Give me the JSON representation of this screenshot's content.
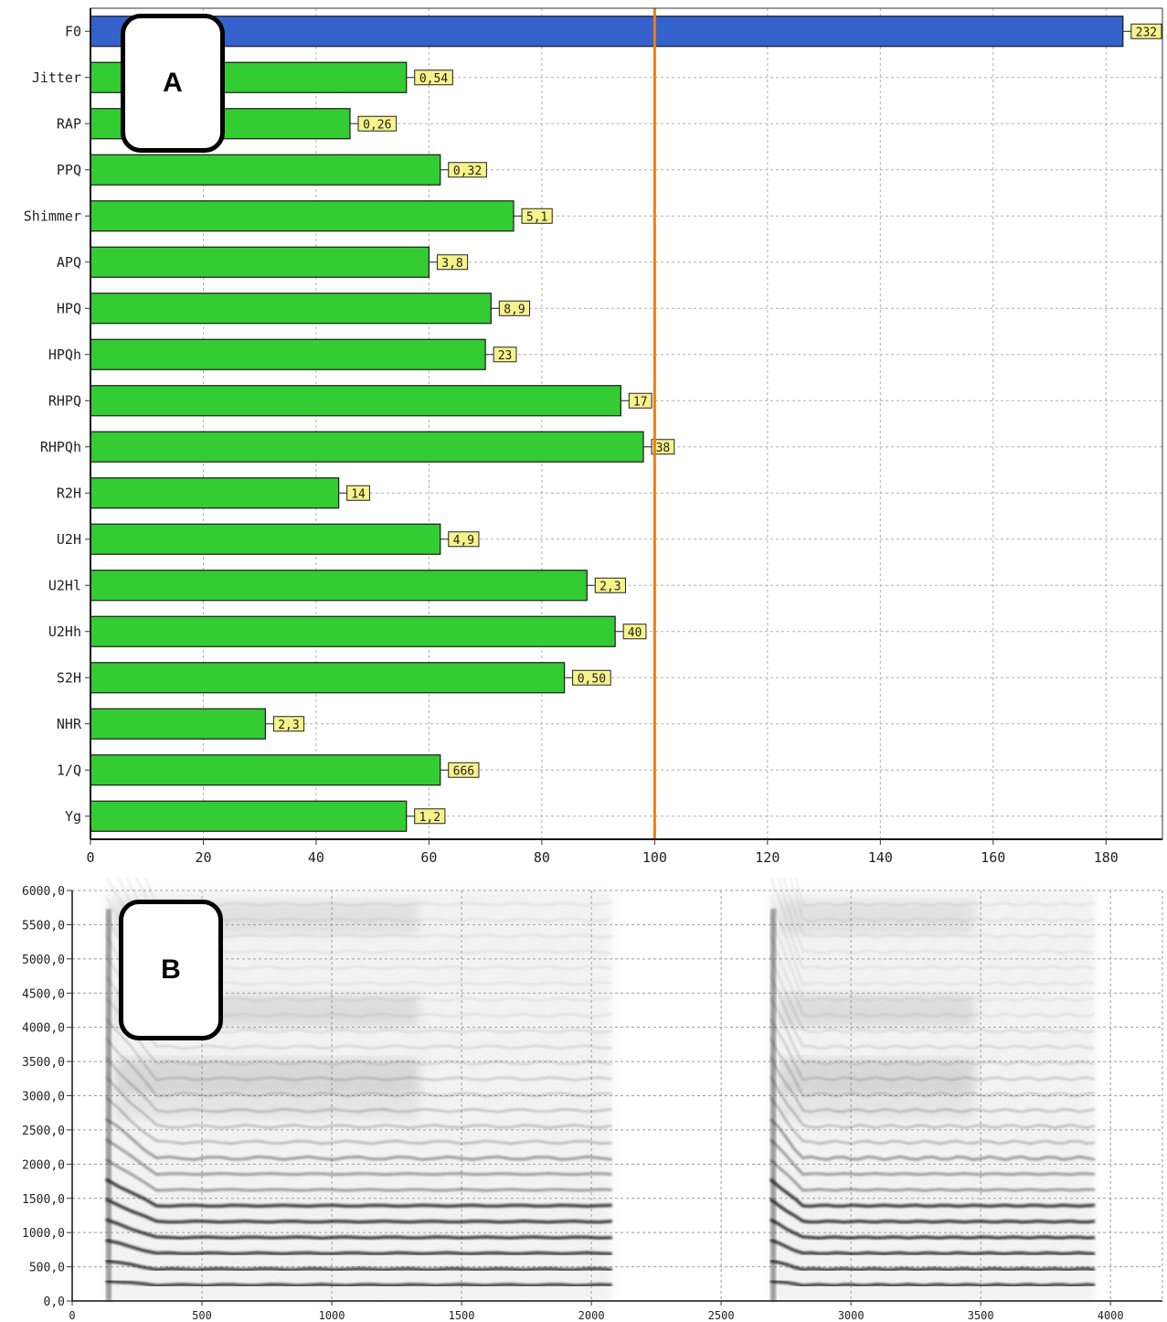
{
  "panels": {
    "a_label": "A",
    "b_label": "B"
  },
  "chart_data": [
    {
      "type": "bar",
      "orientation": "horizontal",
      "categories": [
        "F0",
        "Jitter",
        "RAP",
        "PPQ",
        "Shimmer",
        "APQ",
        "HPQ",
        "HPQh",
        "RHPQ",
        "RHPQh",
        "R2H",
        "U2H",
        "U2Hl",
        "U2Hh",
        "S2H",
        "NHR",
        "1/Q",
        "Yg"
      ],
      "values": [
        183,
        56,
        46,
        62,
        75,
        60,
        71,
        70,
        94,
        98,
        44,
        62,
        88,
        93,
        84,
        31,
        62,
        56
      ],
      "data_labels": [
        "232",
        "0,54",
        "0,26",
        "0,32",
        "5,1",
        "3,8",
        "8,9",
        "23",
        "17",
        "38",
        "14",
        "4,9",
        "2,3",
        "40",
        "0,50",
        "2,3",
        "666",
        "1,2"
      ],
      "highlight_category": "F0",
      "colors": {
        "highlight": "#3461cc",
        "bars": "#33cc33",
        "reference_line": "#e8801a",
        "data_label_bg": "#f6f38a"
      },
      "reference_line": 100,
      "xlim": [
        0,
        190
      ],
      "xticks": [
        0,
        20,
        40,
        60,
        80,
        100,
        120,
        140,
        160,
        180
      ],
      "grid": true
    },
    {
      "type": "heatmap",
      "subtype": "spectrogram",
      "xlim": [
        0,
        4200
      ],
      "ylim": [
        0,
        6000
      ],
      "xticks": [
        0,
        500,
        1000,
        1500,
        2000,
        2500,
        3000,
        3500,
        4000
      ],
      "yticks": [
        0,
        500,
        1000,
        1500,
        2000,
        2500,
        3000,
        3500,
        4000,
        4500,
        5000,
        5500,
        6000
      ],
      "ytick_labels": [
        "0,0",
        "500,0",
        "1000,0",
        "1500,0",
        "2000,0",
        "2500,0",
        "3000,0",
        "3500,0",
        "4000,0",
        "4500,0",
        "5000,0",
        "5500,0",
        "6000,0"
      ],
      "voiced_segments": [
        [
          130,
          2080
        ],
        [
          2690,
          3940
        ]
      ],
      "fundamental_hz": 232,
      "grid": true
    }
  ]
}
